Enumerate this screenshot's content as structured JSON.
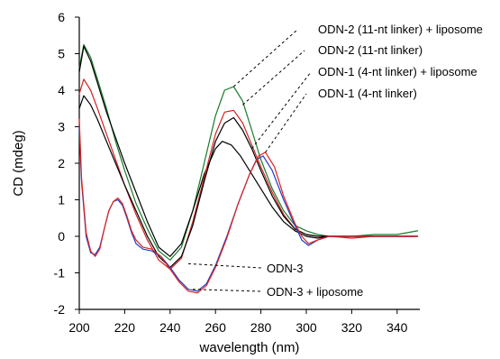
{
  "chart_data": {
    "type": "line",
    "xlabel": "wavelength (nm)",
    "ylabel": "CD (mdeg)",
    "xlim": [
      200,
      350
    ],
    "ylim": [
      -2,
      6
    ],
    "xticks": [
      200,
      220,
      240,
      260,
      280,
      300,
      320,
      340
    ],
    "yticks": [
      -2,
      -1,
      0,
      1,
      2,
      3,
      4,
      5,
      6
    ],
    "grid": false,
    "legend": "none",
    "series": [
      {
        "name": "ODN-2 (11-nt linker) + liposome",
        "color": "#1a7a2a",
        "x": [
          200,
          202,
          205,
          208,
          212,
          216,
          220,
          225,
          230,
          235,
          240,
          245,
          250,
          255,
          260,
          264,
          268,
          272,
          276,
          280,
          285,
          290,
          295,
          300,
          305,
          310,
          320,
          330,
          340,
          349
        ],
        "y": [
          4.6,
          5.25,
          4.9,
          4.3,
          3.5,
          2.6,
          1.8,
          0.9,
          0.2,
          -0.4,
          -0.65,
          -0.3,
          0.7,
          2.0,
          3.3,
          4.0,
          4.1,
          3.7,
          2.9,
          2.1,
          1.3,
          0.7,
          0.3,
          0.15,
          0.05,
          0.0,
          0.0,
          0.05,
          0.05,
          0.15
        ]
      },
      {
        "name": "ODN-2 (11-nt linker)",
        "color": "#000000",
        "x": [
          200,
          202,
          205,
          208,
          212,
          216,
          220,
          225,
          230,
          235,
          240,
          245,
          250,
          255,
          260,
          263,
          267,
          271,
          275,
          280,
          285,
          290,
          295,
          300,
          305,
          310,
          320,
          330,
          340,
          349
        ],
        "y": [
          4.5,
          5.2,
          4.8,
          4.2,
          3.4,
          2.7,
          2.0,
          1.2,
          0.4,
          -0.3,
          -0.55,
          -0.2,
          0.7,
          1.7,
          2.4,
          2.6,
          2.5,
          2.2,
          1.8,
          1.3,
          0.8,
          0.4,
          0.15,
          0.0,
          -0.05,
          0.0,
          0.0,
          0.0,
          0.0,
          0.0
        ]
      },
      {
        "name": "ODN-1 (4-nt linker) + liposome",
        "color": "#d42020",
        "x": [
          200,
          202,
          205,
          208,
          212,
          216,
          220,
          225,
          230,
          235,
          240,
          245,
          250,
          255,
          260,
          264,
          268,
          272,
          276,
          280,
          285,
          290,
          295,
          300,
          305,
          310,
          320,
          330,
          340,
          349
        ],
        "y": [
          3.9,
          4.3,
          4.0,
          3.5,
          2.8,
          2.1,
          1.4,
          0.6,
          -0.1,
          -0.65,
          -0.9,
          -0.6,
          0.4,
          1.6,
          2.8,
          3.4,
          3.45,
          3.1,
          2.5,
          1.9,
          1.2,
          0.6,
          0.2,
          0.05,
          0.0,
          0.0,
          -0.05,
          0.0,
          0.0,
          0.0
        ]
      },
      {
        "name": "ODN-1 (4-nt linker)",
        "color": "#000000",
        "x": [
          200,
          202,
          205,
          208,
          212,
          216,
          220,
          225,
          230,
          235,
          240,
          245,
          250,
          255,
          260,
          264,
          268,
          272,
          276,
          280,
          285,
          290,
          295,
          300,
          305,
          310,
          320,
          330,
          340,
          349
        ],
        "y": [
          3.5,
          3.85,
          3.6,
          3.2,
          2.6,
          2.0,
          1.4,
          0.7,
          0.0,
          -0.55,
          -0.85,
          -0.55,
          0.3,
          1.5,
          2.6,
          3.1,
          3.25,
          2.9,
          2.4,
          1.8,
          1.1,
          0.55,
          0.2,
          0.05,
          0.0,
          0.0,
          0.0,
          0.0,
          0.0,
          0.0
        ]
      },
      {
        "name": "ODN-3",
        "color": "#1f3fc4",
        "x": [
          200,
          201,
          203,
          205,
          207,
          209,
          211,
          213,
          215,
          217,
          219,
          221,
          223,
          225,
          228,
          232,
          236,
          240,
          244,
          248,
          252,
          256,
          260,
          265,
          270,
          275,
          278,
          281,
          285,
          290,
          295,
          298,
          301,
          305,
          310,
          320,
          330,
          340,
          349
        ],
        "y": [
          3.0,
          1.5,
          0.0,
          -0.45,
          -0.5,
          -0.3,
          0.2,
          0.7,
          0.95,
          1.0,
          0.85,
          0.5,
          0.1,
          -0.2,
          -0.35,
          -0.4,
          -0.55,
          -0.85,
          -1.2,
          -1.45,
          -1.5,
          -1.3,
          -0.8,
          0.0,
          0.9,
          1.7,
          2.1,
          2.2,
          1.8,
          1.0,
          0.3,
          -0.1,
          -0.25,
          -0.1,
          0.0,
          0.0,
          0.0,
          0.0,
          0.0
        ]
      },
      {
        "name": "ODN-3 + liposome",
        "color": "#e02020",
        "x": [
          200,
          201,
          203,
          205,
          207,
          209,
          211,
          213,
          215,
          217,
          219,
          221,
          223,
          225,
          228,
          232,
          236,
          240,
          244,
          248,
          252,
          256,
          260,
          265,
          270,
          275,
          279,
          282,
          286,
          290,
          295,
          298,
          301,
          305,
          310,
          320,
          330,
          340,
          349
        ],
        "y": [
          3.2,
          1.6,
          0.1,
          -0.4,
          -0.55,
          -0.35,
          0.2,
          0.7,
          0.95,
          1.05,
          0.9,
          0.55,
          0.15,
          -0.1,
          -0.3,
          -0.35,
          -0.55,
          -0.9,
          -1.25,
          -1.5,
          -1.55,
          -1.35,
          -0.85,
          -0.05,
          0.9,
          1.7,
          2.2,
          2.3,
          1.9,
          1.1,
          0.35,
          0.0,
          -0.2,
          -0.1,
          0.0,
          0.0,
          0.0,
          0.0,
          0.0
        ]
      }
    ],
    "annotations": [
      {
        "text": "ODN-2 (11-nt linker) + liposome",
        "points_to": [
          268,
          4.1
        ]
      },
      {
        "text": "ODN-2 (11-nt linker)",
        "points_to": [
          272,
          3.6
        ]
      },
      {
        "text": "ODN-1 (4-nt linker) + liposome",
        "points_to": [
          276,
          2.4
        ]
      },
      {
        "text": "ODN-1 (4-nt linker)",
        "points_to": [
          282,
          2.3
        ]
      },
      {
        "text": "ODN-3",
        "points_to": [
          248,
          -0.75
        ]
      },
      {
        "text": "ODN-3 + liposome",
        "points_to": [
          250,
          -1.45
        ]
      }
    ]
  }
}
